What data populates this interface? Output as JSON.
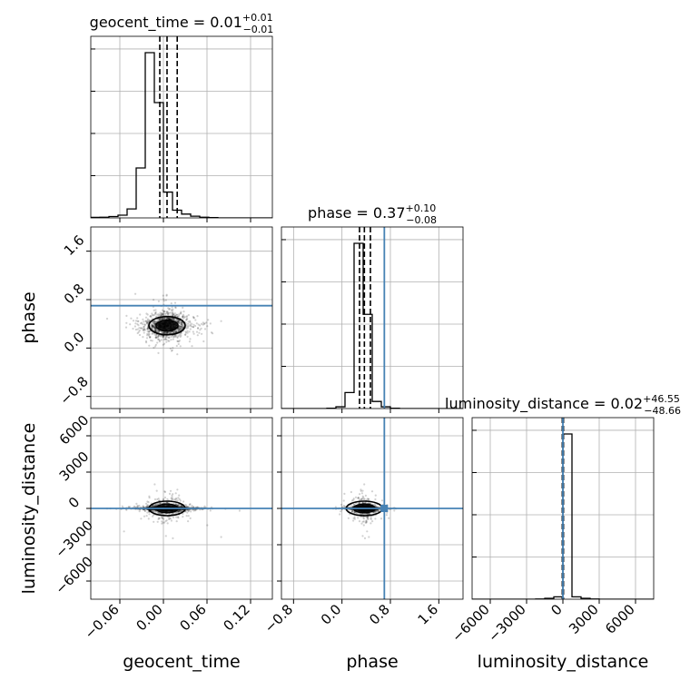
{
  "chart_data": {
    "type": "corner",
    "parameters": [
      "geocent_time",
      "phase",
      "luminosity_distance"
    ],
    "axis_labels": {
      "x": [
        "geocent_time",
        "phase",
        "luminosity_distance"
      ],
      "y": [
        "phase",
        "luminosity_distance"
      ]
    },
    "titles": [
      {
        "name": "geocent_time = 0.01",
        "sup": "+0.01",
        "sub": "−0.01"
      },
      {
        "name": "phase = 0.37",
        "sup": "+0.10",
        "sub": "−0.08"
      },
      {
        "name": "luminosity_distance = 0.02",
        "sup": "+46.55",
        "sub": "−48.66"
      }
    ],
    "ranges": {
      "geocent_time": [
        -0.1,
        0.15
      ],
      "phase": [
        -1.0,
        2.0
      ],
      "luminosity_distance": [
        -7500,
        7500
      ]
    },
    "ticks": {
      "geocent_time": [
        -0.06,
        0.0,
        0.06,
        0.12
      ],
      "phase": [
        -0.8,
        0.0,
        0.8,
        1.6
      ],
      "luminosity_distance": [
        -6000,
        -3000,
        0,
        3000,
        6000
      ]
    },
    "tick_labels": {
      "geocent_time": [
        "−0.06",
        "0.00",
        "0.06",
        "0.12"
      ],
      "phase": [
        "−0.8",
        "0.0",
        "0.8",
        "1.6"
      ],
      "luminosity_distance": [
        "−6000",
        "−3000",
        "0",
        "3000",
        "6000"
      ]
    },
    "truths": {
      "geocent_time": null,
      "phase": 0.7,
      "luminosity_distance": 0
    },
    "quantiles": {
      "geocent_time": [
        -0.005,
        0.005,
        0.019
      ],
      "phase": [
        0.29,
        0.37,
        0.47
      ],
      "luminosity_distance": [
        -48.64,
        0.02,
        46.57
      ]
    },
    "histograms": {
      "geocent_time": {
        "edges": [
          -0.1,
          -0.0875,
          -0.075,
          -0.0625,
          -0.05,
          -0.0375,
          -0.025,
          -0.0125,
          0.0,
          0.0125,
          0.025,
          0.0375,
          0.05,
          0.0625,
          0.075,
          0.0875,
          0.1,
          0.1125,
          0.125,
          0.1375,
          0.15
        ],
        "counts": [
          0.3,
          0.4,
          0.8,
          1.6,
          5.2,
          29,
          96,
          67,
          15,
          4.5,
          2.2,
          1.0,
          0.4,
          0.2,
          0,
          0,
          0,
          0,
          0,
          0
        ]
      },
      "phase": {
        "edges": [
          -1.0,
          -0.85,
          -0.7,
          -0.55,
          -0.4,
          -0.25,
          -0.1,
          0.05,
          0.2,
          0.35,
          0.5,
          0.65,
          0.8,
          0.95,
          1.1,
          1.25,
          1.4,
          1.55,
          1.7,
          1.85,
          2.0
        ],
        "counts": [
          0,
          0,
          0,
          0,
          0,
          0.2,
          1,
          9,
          93,
          53,
          4,
          1,
          0.2,
          0,
          0,
          0,
          0,
          0,
          0,
          0
        ]
      },
      "luminosity_distance": {
        "edges": [
          -7500,
          -6750,
          -6000,
          -5250,
          -4500,
          -3750,
          -3000,
          -2250,
          -1500,
          -750,
          0,
          750,
          1500,
          2250,
          3000,
          3750,
          4500,
          5250,
          6000,
          6750,
          7500
        ],
        "counts": [
          0,
          0,
          0,
          0,
          0,
          0,
          0,
          0.1,
          0.5,
          1.4,
          97,
          1.4,
          0.5,
          0.1,
          0,
          0,
          0,
          0,
          0,
          0
        ]
      }
    },
    "colors": {
      "truth": "#4682b4",
      "hist": "#000000",
      "points": "#000000"
    }
  }
}
